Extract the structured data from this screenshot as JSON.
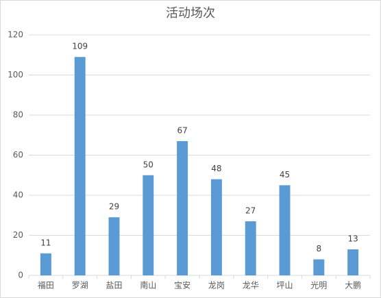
{
  "chart_data": {
    "type": "bar",
    "title": "活动场次",
    "categories": [
      "福田",
      "罗湖",
      "盐田",
      "南山",
      "宝安",
      "龙岗",
      "龙华",
      "坪山",
      "光明",
      "大鹏"
    ],
    "values": [
      11,
      109,
      29,
      50,
      67,
      48,
      27,
      45,
      8,
      13
    ],
    "color": "#5b9bd5",
    "ylim": [
      0,
      120
    ],
    "yticks": [
      0,
      20,
      40,
      60,
      80,
      100,
      120
    ],
    "grid": true
  }
}
